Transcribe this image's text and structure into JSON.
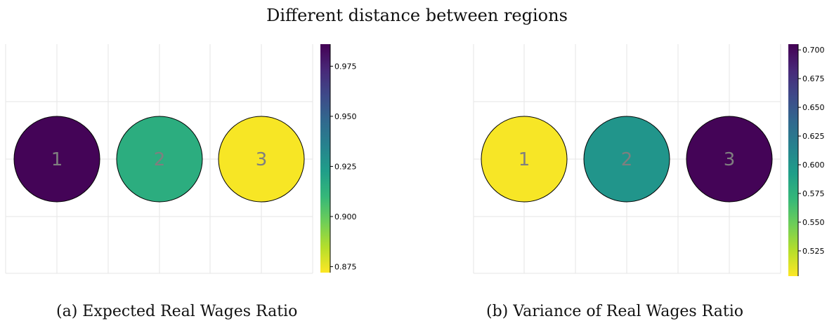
{
  "figure": {
    "title": "Different distance between regions",
    "captions": [
      "(a) Expected Real Wages Ratio",
      "(b) Variance of Real Wages Ratio"
    ]
  },
  "chart_data": [
    {
      "type": "scatter",
      "caption": "(a) Expected Real Wages Ratio",
      "points": [
        {
          "label": "1",
          "value": 0.985
        },
        {
          "label": "2",
          "value": 0.915
        },
        {
          "label": "3",
          "value": 0.873
        }
      ],
      "colorbar": {
        "min": 0.872,
        "max": 0.986,
        "ticks": [
          0.875,
          0.9,
          0.925,
          0.95,
          0.975
        ],
        "tick_labels": [
          "0.875",
          "0.900",
          "0.925",
          "0.950",
          "0.975"
        ],
        "colormap": "viridis"
      },
      "grid": true
    },
    {
      "type": "scatter",
      "caption": "(b) Variance of Real Wages Ratio",
      "points": [
        {
          "label": "1",
          "value": 0.505
        },
        {
          "label": "2",
          "value": 0.6
        },
        {
          "label": "3",
          "value": 0.703
        }
      ],
      "colorbar": {
        "min": 0.503,
        "max": 0.705,
        "ticks": [
          0.525,
          0.55,
          0.575,
          0.6,
          0.625,
          0.65,
          0.675,
          0.7
        ],
        "tick_labels": [
          "0.525",
          "0.550",
          "0.575",
          "0.600",
          "0.625",
          "0.650",
          "0.675",
          "0.700"
        ],
        "colormap": "viridis"
      },
      "grid": true
    }
  ],
  "colors": {
    "viridis": [
      "#fde725",
      "#b5de2b",
      "#6ece58",
      "#35b779",
      "#1f9e89",
      "#26828e",
      "#31688e",
      "#3e4989",
      "#482878",
      "#440154"
    ],
    "node_label": "#7f7f7f",
    "grid": "#e6e6e6"
  }
}
